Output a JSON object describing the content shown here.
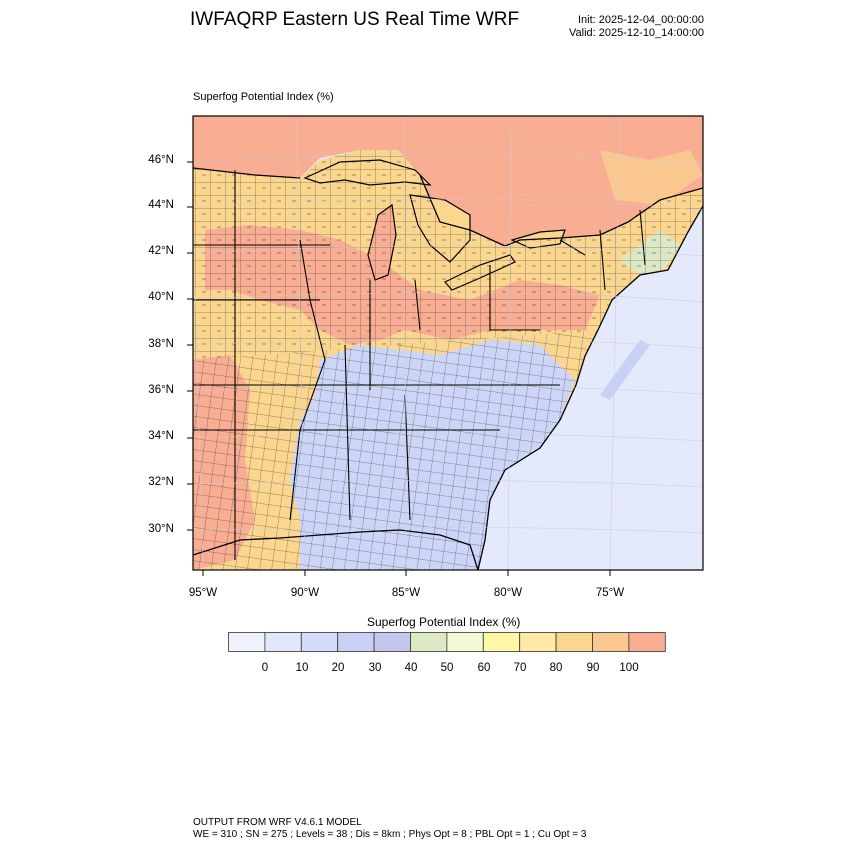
{
  "header": {
    "title": "IWFAQRP Eastern US Real Time WRF",
    "init": "Init: 2025-12-04_00:00:00",
    "valid": "Valid: 2025-12-10_14:00:00"
  },
  "plot": {
    "title": "Superfog Potential Index   (%)",
    "lat_labels": [
      "46°N",
      "44°N",
      "42°N",
      "40°N",
      "38°N",
      "36°N",
      "34°N",
      "32°N",
      "30°N"
    ],
    "lon_labels": [
      "95°W",
      "90°W",
      "85°W",
      "80°W",
      "75°W"
    ]
  },
  "colorbar": {
    "title": "Superfog Potential Index  (%)",
    "ticks": [
      "0",
      "10",
      "20",
      "30",
      "40",
      "50",
      "60",
      "70",
      "80",
      "90",
      "100"
    ],
    "colors": [
      "#f0f2fb",
      "#e2e8fb",
      "#d3dcf8",
      "#c8d0f4",
      "#c4c7f0",
      "#dce9c4",
      "#f2f9d7",
      "#fff6a6",
      "#ffe9a8",
      "#fbd68e",
      "#fbc790",
      "#f9ad93"
    ]
  },
  "footer": {
    "line1": "OUTPUT FROM WRF V4.6.1 MODEL",
    "line2": "WE = 310 ; SN = 275 ; Levels = 38 ; Dis = 8km ; Phys Opt = 8 ; PBL Opt = 1 ; Cu Opt = 3"
  }
}
